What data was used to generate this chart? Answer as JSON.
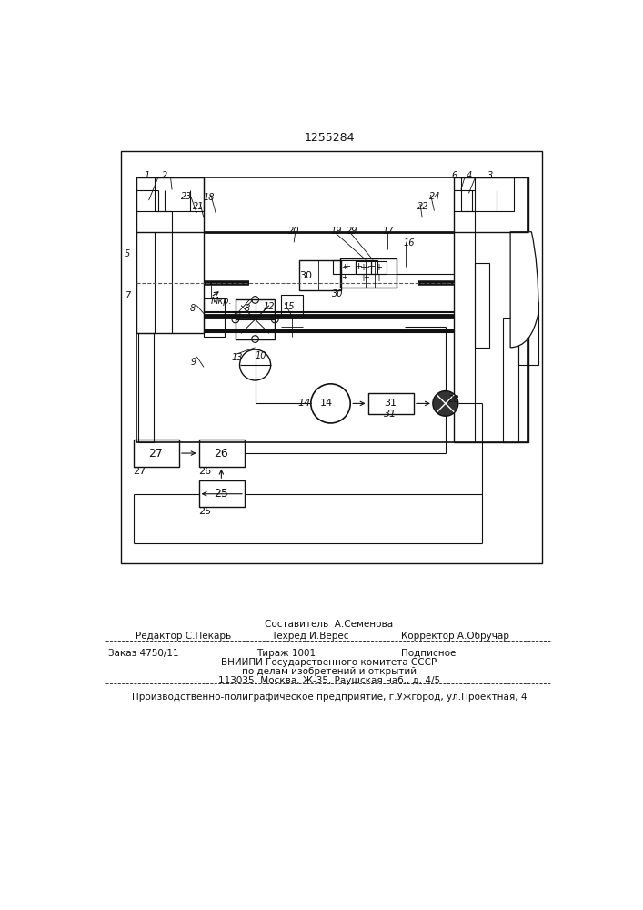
{
  "title": "1255284",
  "bg_color": "#ffffff",
  "footer_compiled": "Составитель  А.Семенова",
  "footer_editor": "Редактор С.Пекарь",
  "footer_tech": "Техред И.Верес",
  "footer_corr": "Корректор А.Обручар",
  "footer_order": "Заказ 4750/11",
  "footer_circ": "Тираж 1001",
  "footer_sub": "Подписное",
  "footer_vniip": "ВНИИПИ Государственного комитета СССР",
  "footer_affairs": "по делам изобретений и открытий",
  "footer_addr": "113035, Москва, Ж-35, Раушская наб., д. 4/5",
  "footer_prod": "Производственно-полиграфическое предприятие, г.Ужгород, ул.Проектная, 4"
}
